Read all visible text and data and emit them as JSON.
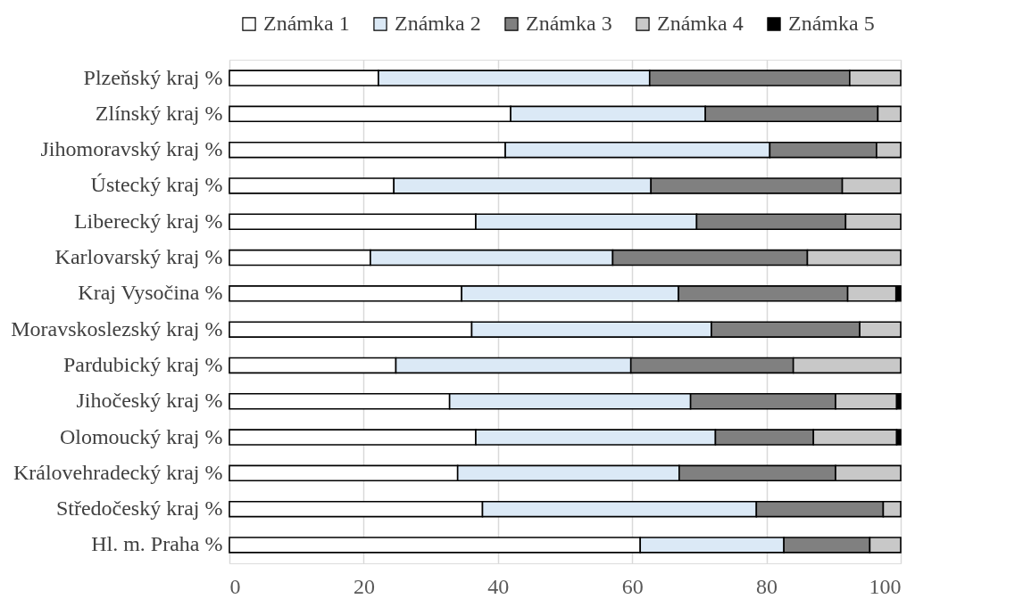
{
  "chart_data": {
    "type": "bar",
    "orientation": "horizontal",
    "stacked": true,
    "categories": [
      "Plzeňský  kraj %",
      "Zlínský  kraj %",
      "Jihomoravský  kraj %",
      "Ústecký  kraj %",
      "Liberecký  kraj %",
      "Karlovarský  kraj %",
      "Kraj Vysočina %",
      "Moravskoslezský  kraj %",
      "Pardubický  kraj %",
      "Jihočeský  kraj %",
      "Olomoucký kraj %",
      "Královehradecký  kraj %",
      "Středočeský kraj %",
      "Hl. m. Praha %"
    ],
    "series": [
      {
        "name": "Známka 1",
        "color": "#ffffff",
        "values": [
          22.2,
          41.9,
          41.1,
          24.5,
          36.7,
          21.0,
          34.6,
          36.1,
          24.8,
          32.8,
          36.7,
          34.0,
          37.7,
          61.2
        ]
      },
      {
        "name": "Známka 2",
        "color": "#dbe9f6",
        "values": [
          40.4,
          29.0,
          39.4,
          38.3,
          32.9,
          36.1,
          32.3,
          35.7,
          35.0,
          35.9,
          35.7,
          33.0,
          40.8,
          21.4
        ]
      },
      {
        "name": "Známka 3",
        "color": "#808080",
        "values": [
          29.8,
          25.7,
          15.9,
          28.5,
          22.2,
          29.0,
          25.2,
          22.1,
          24.2,
          21.6,
          14.6,
          23.3,
          18.9,
          12.8
        ]
      },
      {
        "name": "Známka 4",
        "color": "#c8c8c8",
        "values": [
          7.6,
          3.4,
          3.6,
          8.7,
          8.2,
          13.9,
          7.2,
          6.1,
          16.0,
          9.1,
          12.4,
          9.7,
          2.6,
          4.6
        ]
      },
      {
        "name": "Známka 5",
        "color": "#000000",
        "values": [
          null,
          null,
          null,
          null,
          null,
          null,
          0.7,
          null,
          null,
          0.6,
          0.6,
          null,
          null,
          null
        ]
      }
    ],
    "xlim": [
      0,
      100
    ],
    "xticks": [
      0,
      20,
      40,
      60,
      80,
      100
    ],
    "grid": "x",
    "legend": "top"
  }
}
